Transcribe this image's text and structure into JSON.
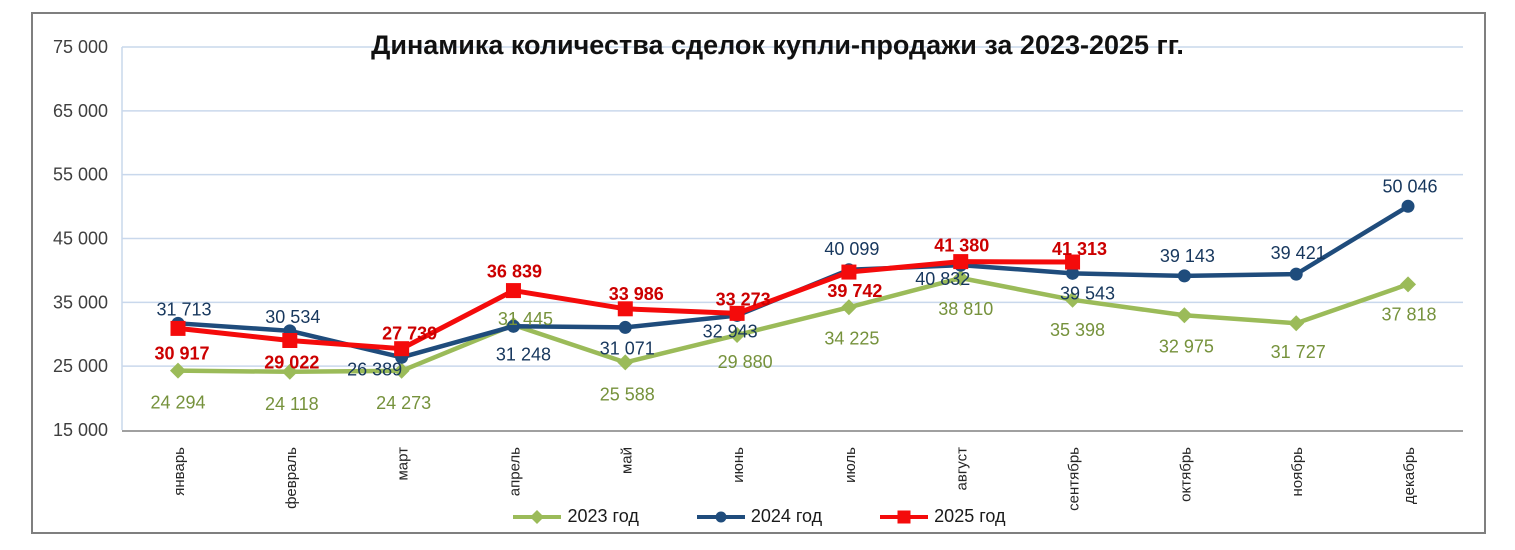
{
  "chart_data": {
    "type": "line",
    "title": "Динамика количества сделок купли-продажи за 2023-2025 гг.",
    "categories": [
      "январь",
      "февраль",
      "март",
      "апрель",
      "май",
      "июнь",
      "июль",
      "август",
      "сентябрь",
      "октябрь",
      "ноябрь",
      "декабрь"
    ],
    "ylim": [
      15000,
      75000
    ],
    "y_ticks": [
      15000,
      25000,
      35000,
      45000,
      55000,
      65000,
      75000
    ],
    "y_tick_labels": [
      "15 000",
      "25 000",
      "35 000",
      "45 000",
      "55 000",
      "65 000",
      "75 000"
    ],
    "grid": true,
    "legend_position": "bottom",
    "colors": {
      "gridline": "#c9d8ec",
      "axis_line": "#a0a0a0",
      "frame": "#7f7f7f"
    },
    "series": [
      {
        "name": "2023 год",
        "marker": "diamond",
        "color": "#9BBB59",
        "label_color": "#76923C",
        "bold_labels": false,
        "values": [
          24294,
          24118,
          24273,
          31445,
          25588,
          29880,
          34225,
          38810,
          35398,
          32975,
          31727,
          37818
        ],
        "label_offsets": [
          [
            0,
            32
          ],
          [
            2,
            32
          ],
          [
            2,
            32
          ],
          [
            12,
            -6
          ],
          [
            2,
            32
          ],
          [
            8,
            27
          ],
          [
            3,
            31
          ],
          [
            5,
            31
          ],
          [
            5,
            30
          ],
          [
            2,
            31
          ],
          [
            2,
            29
          ],
          [
            1,
            30
          ]
        ]
      },
      {
        "name": "2024 год",
        "marker": "circle",
        "color": "#1F4C7C",
        "label_color": "#17375D",
        "bold_labels": false,
        "values": [
          31713,
          30534,
          26389,
          31248,
          31071,
          32943,
          40099,
          40832,
          39543,
          39143,
          39421,
          50046
        ],
        "label_offsets": [
          [
            6,
            -14
          ],
          [
            3,
            -14
          ],
          [
            -27,
            12
          ],
          [
            10,
            28
          ],
          [
            2,
            21
          ],
          [
            -7,
            16
          ],
          [
            3,
            -21
          ],
          [
            -18,
            14
          ],
          [
            15,
            20
          ],
          [
            3,
            -20
          ],
          [
            2,
            -21
          ],
          [
            2,
            -20
          ]
        ]
      },
      {
        "name": "2025 год",
        "marker": "square",
        "color": "#F40B0B",
        "label_color": "#CC0000",
        "bold_labels": true,
        "values": [
          30917,
          29022,
          27739,
          36839,
          33986,
          33273,
          39742,
          41380,
          41313
        ],
        "label_offsets": [
          [
            4,
            25
          ],
          [
            2,
            22
          ],
          [
            8,
            -15
          ],
          [
            1,
            -19
          ],
          [
            11,
            -15
          ],
          [
            6,
            -14
          ],
          [
            6,
            19
          ],
          [
            1,
            -16
          ],
          [
            7,
            -13
          ]
        ]
      }
    ]
  }
}
